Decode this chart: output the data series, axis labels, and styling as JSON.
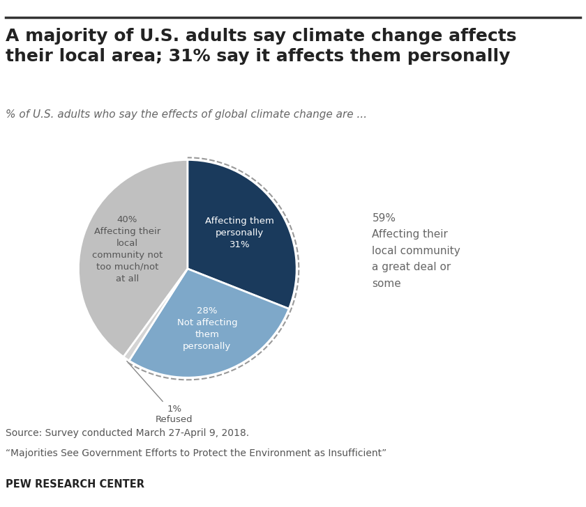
{
  "title": "A majority of U.S. adults say climate change affects\ntheir local area; 31% say it affects them personally",
  "subtitle": "% of U.S. adults who say the effects of global climate change are ...",
  "slices": [
    31,
    28,
    1,
    40
  ],
  "colors": [
    "#1a3a5c",
    "#7ea8c9",
    "#d4d4d4",
    "#c0c0c0"
  ],
  "start_angle": 90,
  "dashed_group_label": "59%\nAffecting their\nlocal community\na great deal or\nsome",
  "source_line1": "Source: Survey conducted March 27-April 9, 2018.",
  "source_line2": "“Majorities See Government Efforts to Protect the Environment as Insufficient”",
  "brand": "PEW RESEARCH CENTER",
  "bg_color": "#ffffff",
  "title_fontsize": 18,
  "subtitle_fontsize": 11,
  "source_fontsize": 10
}
